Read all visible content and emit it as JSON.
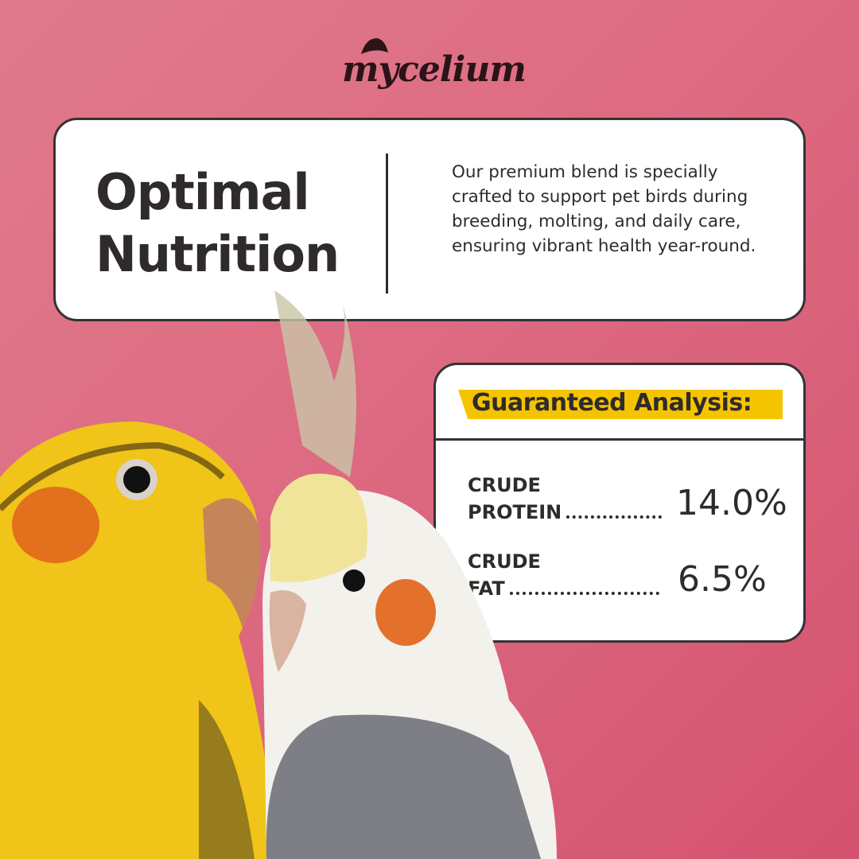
{
  "brand": {
    "logo": "mycelium"
  },
  "hero": {
    "title_line1": "Optimal",
    "title_line2": "Nutrition",
    "description": "Our premium blend is specially crafted to support pet birds during breeding, molting, and daily care, ensuring vibrant health year-round."
  },
  "analysis": {
    "heading": "Guaranteed Analysis:",
    "items": [
      {
        "label_line1": "CRUDE",
        "label_line2": "PROTEIN",
        "value": "14.0%"
      },
      {
        "label_line1": "CRUDE",
        "label_line2": "FAT",
        "value": "6.5%"
      }
    ]
  },
  "colors": {
    "background": "#dd6b82",
    "highlight": "#f5c400",
    "text": "#2f2b2b"
  }
}
